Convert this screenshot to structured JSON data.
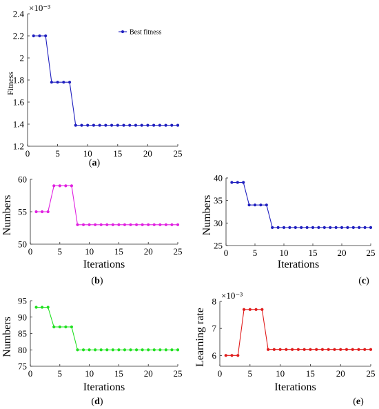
{
  "chart_data": [
    {
      "id": "a",
      "type": "line",
      "panel_label": "a",
      "ylabel": "Fitness",
      "xlabel": "",
      "exponent": "×10⁻³",
      "xlim": [
        0,
        25
      ],
      "ylim": [
        1.2,
        2.4
      ],
      "xticks": [
        0,
        5,
        10,
        15,
        20,
        25
      ],
      "yticks": [
        1.2,
        1.4,
        1.6,
        1.8,
        2.0,
        2.2,
        2.4
      ],
      "ytick_labels": [
        "1.2",
        "1.4",
        "1.6",
        "1.8",
        "2",
        "2.2",
        "2.4"
      ],
      "legend": "top-right",
      "series": [
        {
          "name": "Best fitness",
          "color": "#1f1fbf",
          "x": [
            1,
            2,
            3,
            4,
            5,
            6,
            7,
            8,
            9,
            10,
            11,
            12,
            13,
            14,
            15,
            16,
            17,
            18,
            19,
            20,
            21,
            22,
            23,
            24,
            25
          ],
          "values": [
            2.2,
            2.2,
            2.2,
            1.78,
            1.78,
            1.78,
            1.78,
            1.39,
            1.39,
            1.39,
            1.39,
            1.39,
            1.39,
            1.39,
            1.39,
            1.39,
            1.39,
            1.39,
            1.39,
            1.39,
            1.39,
            1.39,
            1.39,
            1.39,
            1.39
          ]
        }
      ]
    },
    {
      "id": "b",
      "type": "line",
      "panel_label": "b",
      "ylabel": "Numbers",
      "xlabel": "Iterations",
      "xlim": [
        0,
        25
      ],
      "ylim": [
        50,
        60
      ],
      "xticks": [
        0,
        5,
        10,
        15,
        20,
        25
      ],
      "yticks": [
        50,
        55,
        60
      ],
      "ytick_labels": [
        "50",
        "55",
        "60"
      ],
      "series": [
        {
          "color": "#e020e0",
          "x": [
            1,
            2,
            3,
            4,
            5,
            6,
            7,
            8,
            9,
            10,
            11,
            12,
            13,
            14,
            15,
            16,
            17,
            18,
            19,
            20,
            21,
            22,
            23,
            24,
            25
          ],
          "values": [
            55,
            55,
            55,
            59,
            59,
            59,
            59,
            53,
            53,
            53,
            53,
            53,
            53,
            53,
            53,
            53,
            53,
            53,
            53,
            53,
            53,
            53,
            53,
            53,
            53
          ]
        }
      ]
    },
    {
      "id": "c",
      "type": "line",
      "panel_label": "c",
      "ylabel": "Numbers",
      "xlabel": "Iterations",
      "xlim": [
        0,
        25
      ],
      "ylim": [
        25,
        40
      ],
      "xticks": [
        0,
        5,
        10,
        15,
        20,
        25
      ],
      "yticks": [
        25,
        30,
        35,
        40
      ],
      "ytick_labels": [
        "25",
        "30",
        "35",
        "40"
      ],
      "series": [
        {
          "color": "#1f1fbf",
          "x": [
            1,
            2,
            3,
            4,
            5,
            6,
            7,
            8,
            9,
            10,
            11,
            12,
            13,
            14,
            15,
            16,
            17,
            18,
            19,
            20,
            21,
            22,
            23,
            24,
            25
          ],
          "values": [
            39,
            39,
            39,
            34,
            34,
            34,
            34,
            29,
            29,
            29,
            29,
            29,
            29,
            29,
            29,
            29,
            29,
            29,
            29,
            29,
            29,
            29,
            29,
            29,
            29
          ]
        }
      ]
    },
    {
      "id": "d",
      "type": "line",
      "panel_label": "d",
      "ylabel": "Numbers",
      "xlabel": "Iterations",
      "xlim": [
        0,
        25
      ],
      "ylim": [
        75,
        95
      ],
      "xticks": [
        0,
        5,
        10,
        15,
        20,
        25
      ],
      "yticks": [
        75,
        80,
        85,
        90,
        95
      ],
      "ytick_labels": [
        "75",
        "80",
        "85",
        "90",
        "95"
      ],
      "series": [
        {
          "color": "#20e020",
          "x": [
            1,
            2,
            3,
            4,
            5,
            6,
            7,
            8,
            9,
            10,
            11,
            12,
            13,
            14,
            15,
            16,
            17,
            18,
            19,
            20,
            21,
            22,
            23,
            24,
            25
          ],
          "values": [
            93,
            93,
            93,
            87,
            87,
            87,
            87,
            80,
            80,
            80,
            80,
            80,
            80,
            80,
            80,
            80,
            80,
            80,
            80,
            80,
            80,
            80,
            80,
            80,
            80
          ]
        }
      ]
    },
    {
      "id": "e",
      "type": "line",
      "panel_label": "e",
      "ylabel": "Learning rate",
      "xlabel": "Iterations",
      "exponent": "×10⁻³",
      "xlim": [
        0,
        25
      ],
      "ylim": [
        5.6,
        8.0
      ],
      "xticks": [
        0,
        5,
        10,
        15,
        20,
        25
      ],
      "yticks": [
        6,
        7,
        8
      ],
      "ytick_labels": [
        "6",
        "7",
        "8"
      ],
      "series": [
        {
          "color": "#e01a1a",
          "x": [
            1,
            2,
            3,
            4,
            5,
            6,
            7,
            8,
            9,
            10,
            11,
            12,
            13,
            14,
            15,
            16,
            17,
            18,
            19,
            20,
            21,
            22,
            23,
            24,
            25
          ],
          "values": [
            6.0,
            6.0,
            6.0,
            7.7,
            7.7,
            7.7,
            7.7,
            6.22,
            6.22,
            6.22,
            6.22,
            6.22,
            6.22,
            6.22,
            6.22,
            6.22,
            6.22,
            6.22,
            6.22,
            6.22,
            6.22,
            6.22,
            6.22,
            6.22,
            6.22
          ]
        }
      ]
    }
  ]
}
